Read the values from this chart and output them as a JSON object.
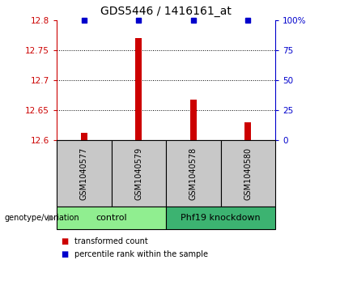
{
  "title": "GDS5446 / 1416161_at",
  "samples": [
    "GSM1040577",
    "GSM1040579",
    "GSM1040578",
    "GSM1040580"
  ],
  "transformed_counts": [
    12.612,
    12.77,
    12.668,
    12.63
  ],
  "percentile_ranks": [
    100,
    100,
    100,
    100
  ],
  "ylim_left": [
    12.6,
    12.8
  ],
  "ylim_right": [
    0,
    100
  ],
  "yticks_left": [
    12.6,
    12.65,
    12.7,
    12.75,
    12.8
  ],
  "yticks_right": [
    0,
    25,
    50,
    75,
    100
  ],
  "ytick_labels_left": [
    "12.6",
    "12.65",
    "12.7",
    "12.75",
    "12.8"
  ],
  "ytick_labels_right": [
    "0",
    "25",
    "50",
    "75",
    "100%"
  ],
  "groups": [
    {
      "label": "control",
      "samples": [
        0,
        1
      ],
      "color": "#90EE90"
    },
    {
      "label": "Phf19 knockdown",
      "samples": [
        2,
        3
      ],
      "color": "#3CB371"
    }
  ],
  "bar_color": "#CC0000",
  "dot_color": "#0000CC",
  "sample_bg_color": "#C8C8C8",
  "group_label_text": "genotype/variation",
  "legend_items": [
    {
      "color": "#CC0000",
      "label": "transformed count"
    },
    {
      "color": "#0000CC",
      "label": "percentile rank within the sample"
    }
  ],
  "title_fontsize": 10,
  "tick_fontsize": 7.5,
  "sample_fontsize": 7,
  "group_fontsize": 8,
  "legend_fontsize": 7
}
